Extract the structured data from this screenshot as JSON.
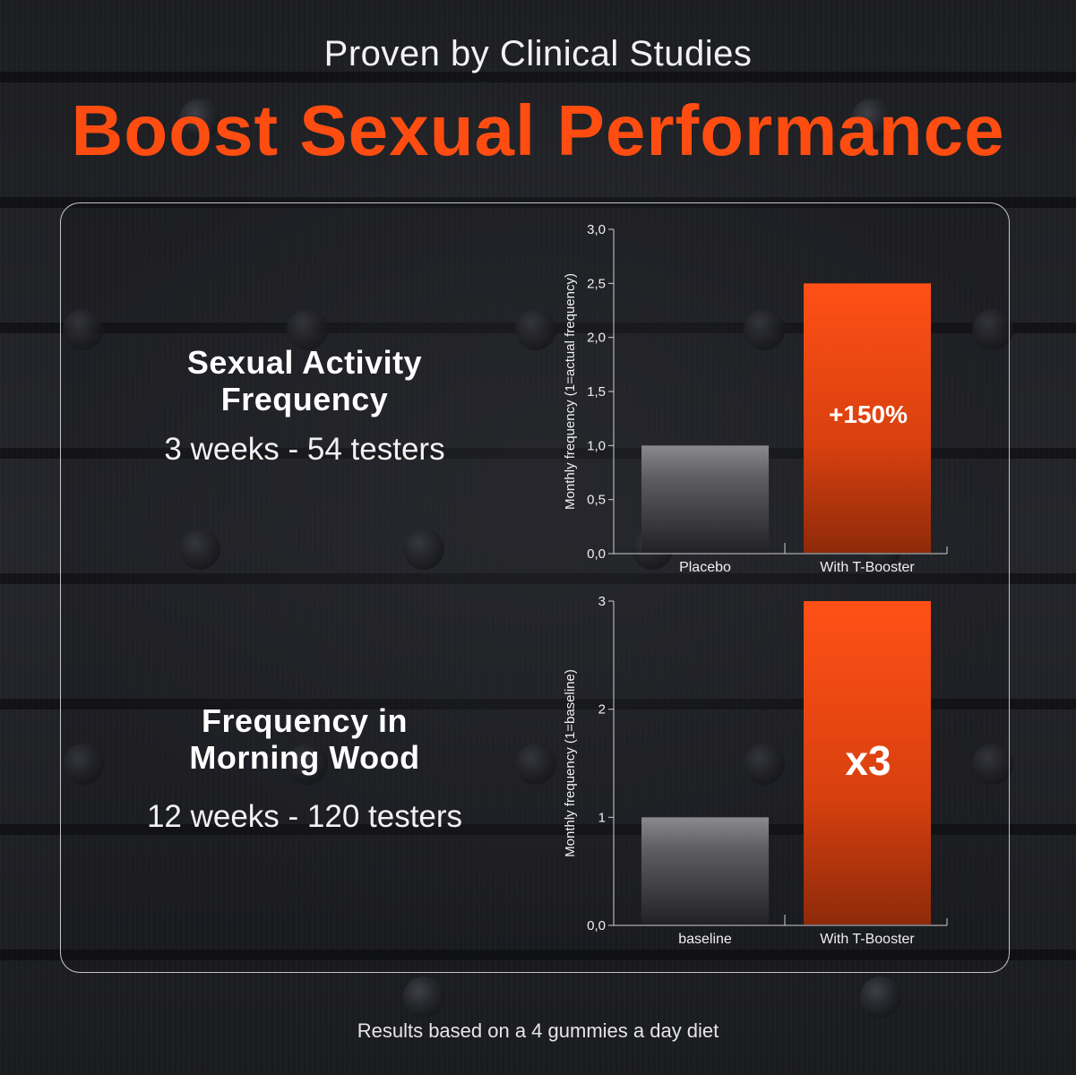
{
  "header": {
    "subtitle": "Proven by Clinical Studies",
    "title": "Boost Sexual Performance"
  },
  "studies": [
    {
      "heading_line1": "Sexual Activity",
      "heading_line2": "Frequency",
      "detail": "3 weeks - 54 testers"
    },
    {
      "heading_line1": "Frequency in",
      "heading_line2": "Morning Wood",
      "detail": "12 weeks - 120 testers"
    }
  ],
  "footer": {
    "note": "Results based on a 4 gummies a day diet"
  },
  "colors": {
    "accent": "#ff4d12",
    "placebo_bar": "#5c5c5e",
    "background": "#1a1b1f"
  },
  "chart_data": [
    {
      "type": "bar",
      "categories": [
        "Placebo",
        "With T-Booster"
      ],
      "values": [
        1.0,
        2.5
      ],
      "ylabel": "Monthly frequency (1=actual frequency)",
      "xlabel": "",
      "ylim": [
        0,
        3.0
      ],
      "yticks": [
        "0,0",
        "0,5",
        "1,0",
        "1,5",
        "2,0",
        "2,5",
        "3,0"
      ],
      "ytick_values": [
        0,
        0.5,
        1.0,
        1.5,
        2.0,
        2.5,
        3.0
      ],
      "annotation": "+150%",
      "grid": false
    },
    {
      "type": "bar",
      "categories": [
        "baseline",
        "With T-Booster"
      ],
      "values": [
        1,
        3
      ],
      "ylabel": "Monthly frequency (1=baseline)",
      "xlabel": "",
      "ylim": [
        0,
        3
      ],
      "yticks": [
        "0,0",
        "1",
        "2",
        "3"
      ],
      "ytick_values": [
        0,
        1,
        2,
        3
      ],
      "annotation": "x3",
      "grid": false
    }
  ]
}
